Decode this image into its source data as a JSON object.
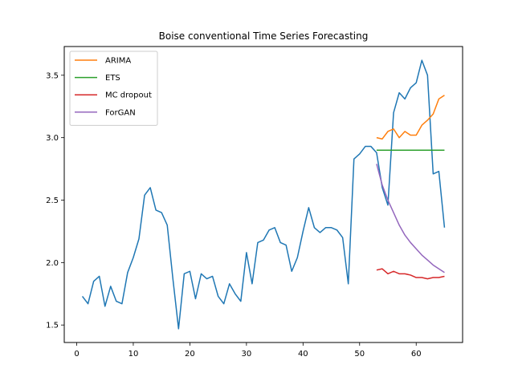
{
  "chart_data": {
    "type": "line",
    "title": "Boise conventional Time Series Forecasting",
    "xlabel": "",
    "ylabel": "",
    "xlim": [
      -2.2,
      68.2
    ],
    "ylim": [
      1.36,
      3.73
    ],
    "xticks": [
      0,
      10,
      20,
      30,
      40,
      50,
      60
    ],
    "yticks": [
      1.5,
      2.0,
      2.5,
      3.0,
      3.5
    ],
    "xtick_labels": [
      "0",
      "10",
      "20",
      "30",
      "40",
      "50",
      "60"
    ],
    "ytick_labels": [
      "1.5",
      "2.0",
      "2.5",
      "3.0",
      "3.5"
    ],
    "grid": false,
    "legend_position": "top-left",
    "series": [
      {
        "name": "",
        "color": "#1f77b4",
        "x": [
          1,
          2,
          3,
          4,
          5,
          6,
          7,
          8,
          9,
          10,
          11,
          12,
          13,
          14,
          15,
          16,
          17,
          18,
          19,
          20,
          21,
          22,
          23,
          24,
          25,
          26,
          27,
          28,
          29,
          30,
          31,
          32,
          33,
          34,
          35,
          36,
          37,
          38,
          39,
          40,
          41,
          42,
          43,
          44,
          45,
          46,
          47,
          48,
          49,
          50,
          51,
          52,
          53,
          54,
          55,
          56,
          57,
          58,
          59,
          60,
          61,
          62,
          63,
          64,
          65
        ],
        "y": [
          1.73,
          1.67,
          1.85,
          1.89,
          1.65,
          1.81,
          1.69,
          1.67,
          1.92,
          2.04,
          2.19,
          2.54,
          2.6,
          2.42,
          2.4,
          2.3,
          1.87,
          1.47,
          1.91,
          1.93,
          1.71,
          1.91,
          1.87,
          1.89,
          1.73,
          1.67,
          1.83,
          1.75,
          1.69,
          2.08,
          1.83,
          2.16,
          2.18,
          2.26,
          2.28,
          2.16,
          2.14,
          1.93,
          2.04,
          2.25,
          2.44,
          2.28,
          2.24,
          2.28,
          2.28,
          2.26,
          2.2,
          1.83,
          2.83,
          2.87,
          2.93,
          2.93,
          2.88,
          2.6,
          2.46,
          3.2,
          3.36,
          3.31,
          3.4,
          3.44,
          3.62,
          3.5,
          2.71,
          2.73,
          2.28
        ]
      },
      {
        "name": "ARIMA",
        "color": "#ff7f0e",
        "x": [
          53,
          54,
          55,
          56,
          57,
          58,
          59,
          60,
          61,
          62,
          63,
          64,
          65
        ],
        "y": [
          3.0,
          2.99,
          3.05,
          3.07,
          3.0,
          3.05,
          3.02,
          3.02,
          3.1,
          3.14,
          3.19,
          3.31,
          3.34
        ]
      },
      {
        "name": "ETS",
        "color": "#2ca02c",
        "x": [
          53,
          54,
          55,
          56,
          57,
          58,
          59,
          60,
          61,
          62,
          63,
          64,
          65
        ],
        "y": [
          2.9,
          2.9,
          2.9,
          2.9,
          2.9,
          2.9,
          2.9,
          2.9,
          2.9,
          2.9,
          2.9,
          2.9,
          2.9
        ]
      },
      {
        "name": "MC dropout",
        "color": "#d62728",
        "x": [
          53,
          54,
          55,
          56,
          57,
          58,
          59,
          60,
          61,
          62,
          63,
          64,
          65
        ],
        "y": [
          1.94,
          1.95,
          1.91,
          1.93,
          1.91,
          1.91,
          1.9,
          1.88,
          1.88,
          1.87,
          1.88,
          1.88,
          1.89
        ]
      },
      {
        "name": "ForGAN",
        "color": "#9467bd",
        "x": [
          53,
          54,
          55,
          56,
          57,
          58,
          59,
          60,
          61,
          62,
          63,
          64,
          65
        ],
        "y": [
          2.79,
          2.62,
          2.5,
          2.4,
          2.3,
          2.22,
          2.16,
          2.11,
          2.06,
          2.02,
          1.98,
          1.95,
          1.92
        ]
      }
    ]
  }
}
